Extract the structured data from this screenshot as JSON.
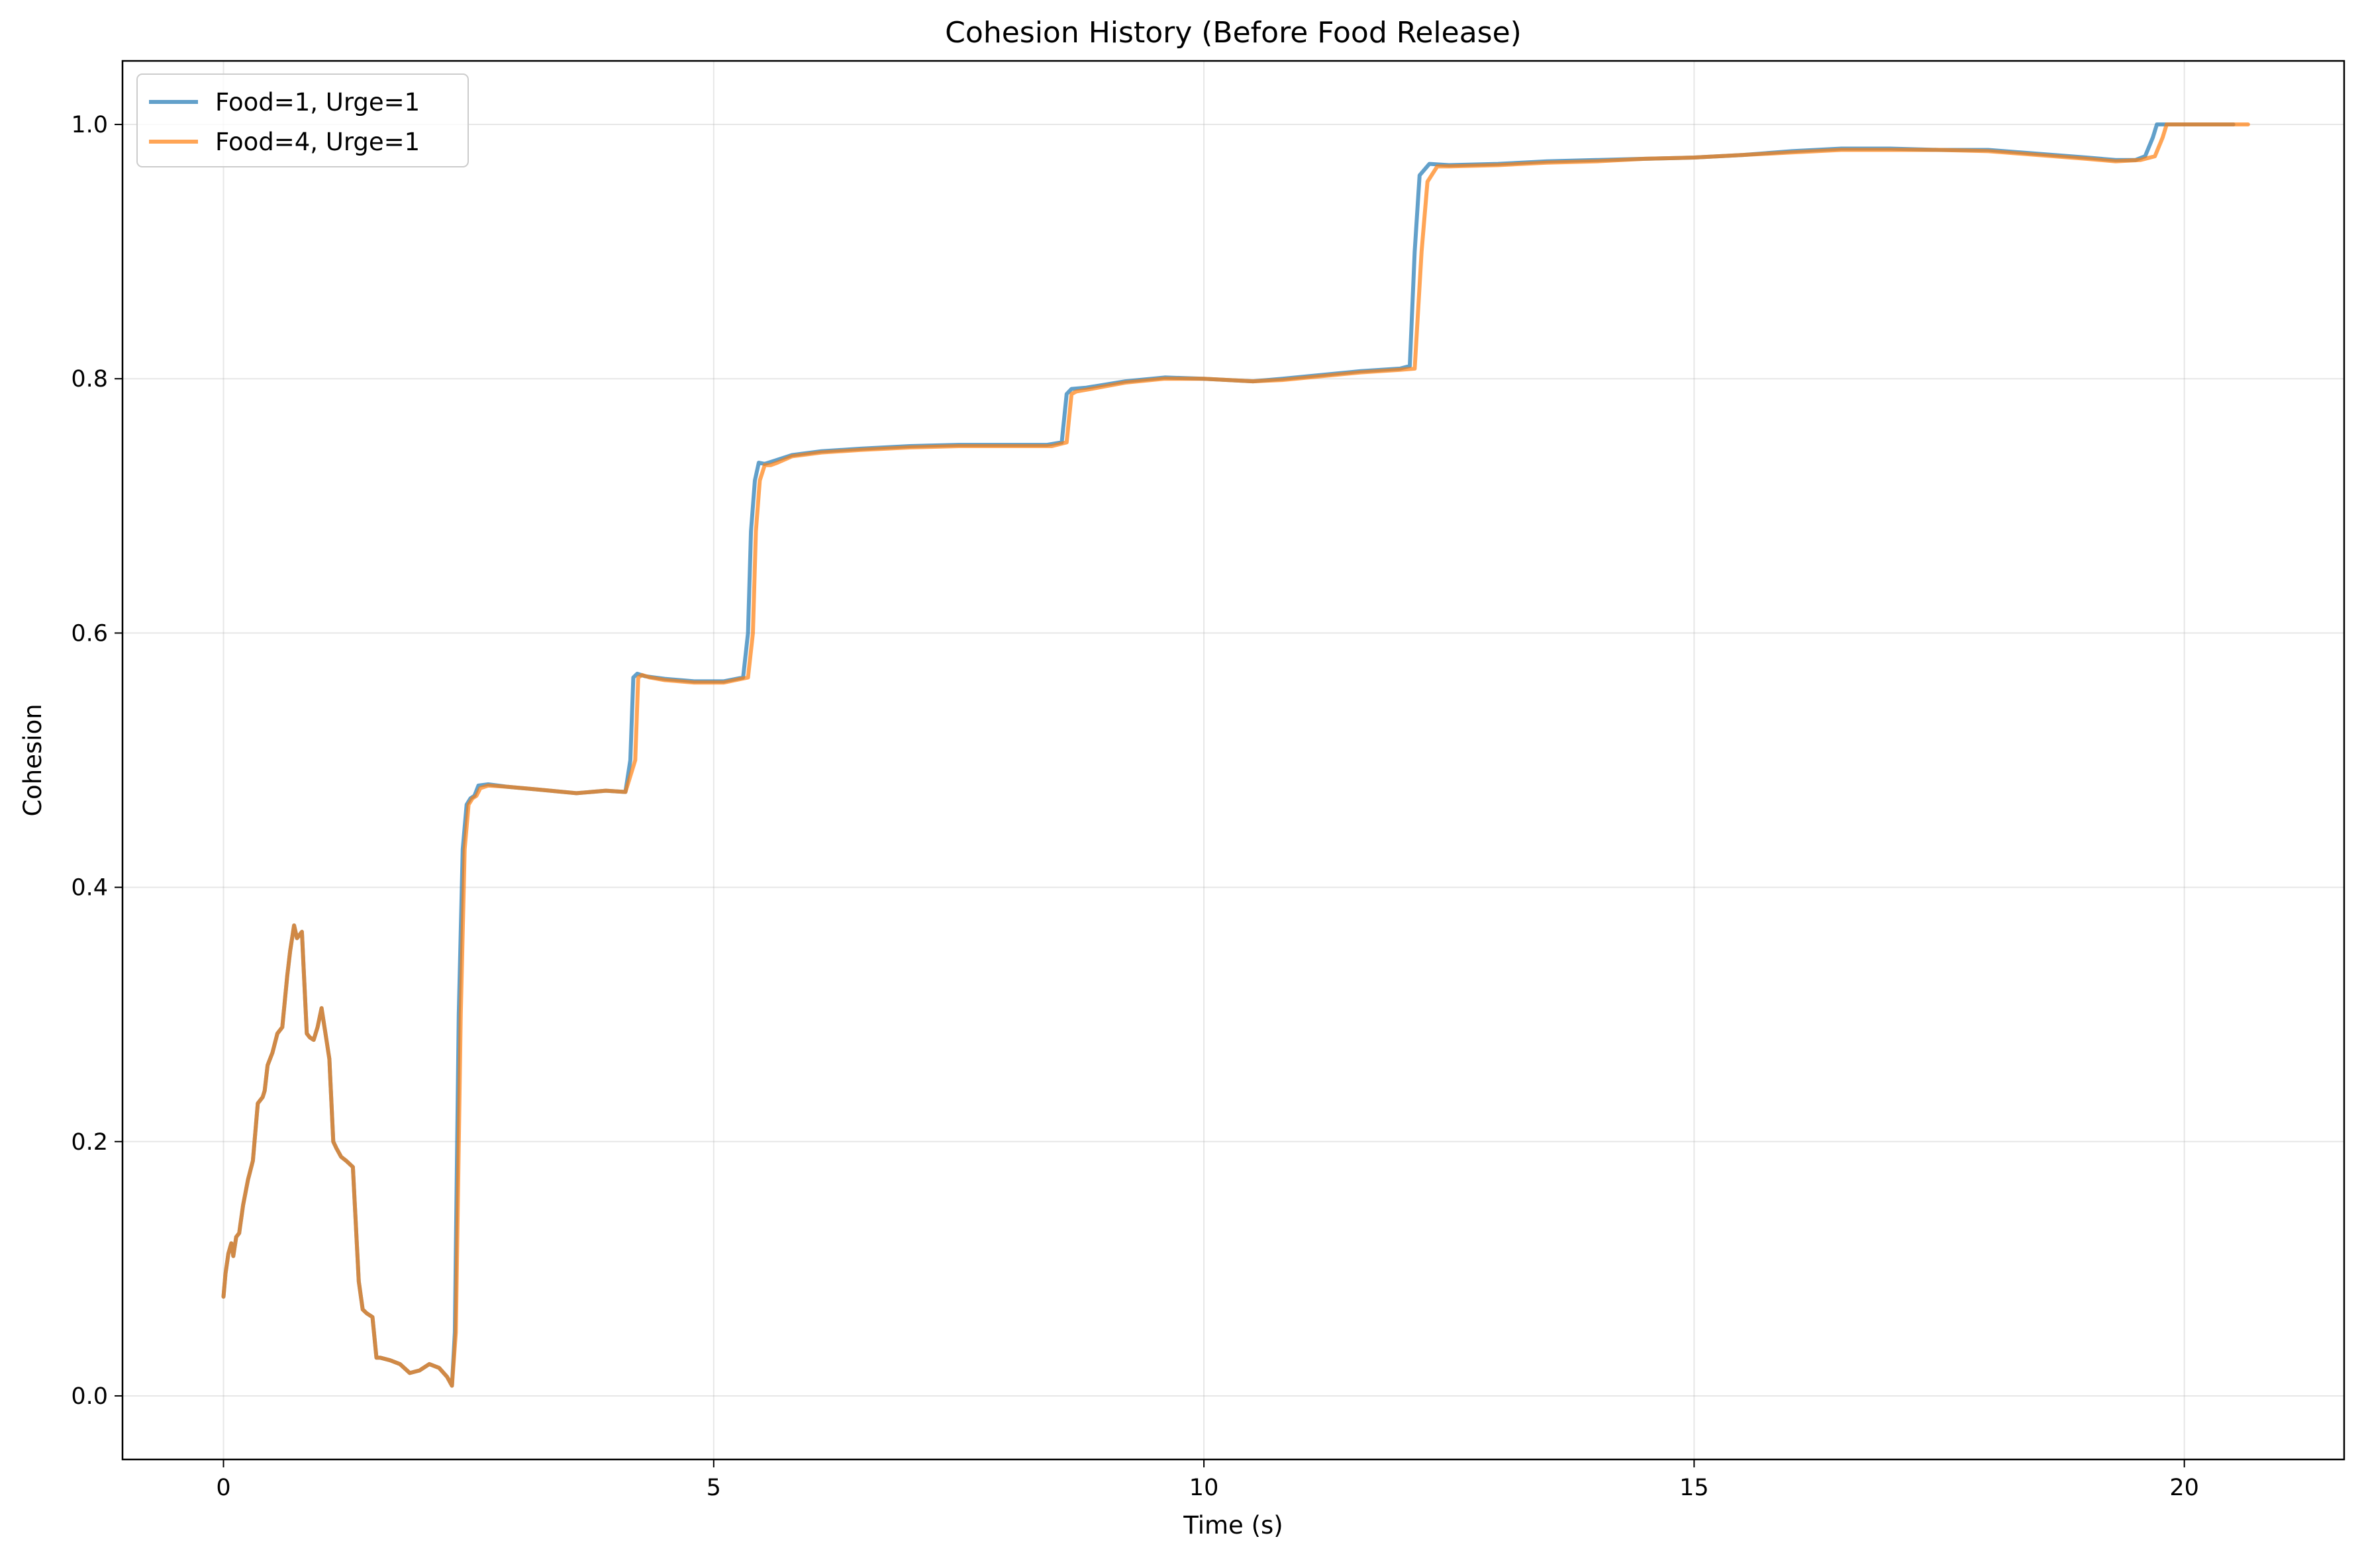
{
  "chart_data": {
    "type": "line",
    "title": "Cohesion History (Before Food Release)",
    "xlabel": "Time (s)",
    "ylabel": "Cohesion",
    "xlim": [
      -1.03,
      21.63
    ],
    "ylim": [
      -0.05,
      1.05
    ],
    "x_ticks": [
      0,
      5,
      10,
      15,
      20
    ],
    "x_tick_labels": [
      "0",
      "5",
      "10",
      "15",
      "20"
    ],
    "y_ticks": [
      0.0,
      0.2,
      0.4,
      0.6,
      0.8,
      1.0
    ],
    "y_tick_labels": [
      "0.0",
      "0.2",
      "0.4",
      "0.6",
      "0.8",
      "1.0"
    ],
    "grid": true,
    "legend_position": "upper-left",
    "series": [
      {
        "name": "Food=1, Urge=1",
        "color": "#1f77b4",
        "x": [
          0,
          0.02,
          0.05,
          0.08,
          0.1,
          0.13,
          0.16,
          0.2,
          0.25,
          0.3,
          0.35,
          0.4,
          0.42,
          0.45,
          0.5,
          0.55,
          0.6,
          0.65,
          0.68,
          0.72,
          0.75,
          0.8,
          0.85,
          0.88,
          0.92,
          0.96,
          1.0,
          1.05,
          1.08,
          1.12,
          1.15,
          1.2,
          1.25,
          1.32,
          1.38,
          1.42,
          1.46,
          1.52,
          1.56,
          1.6,
          1.7,
          1.8,
          1.9,
          2.0,
          2.1,
          2.2,
          2.28,
          2.33,
          2.36,
          2.4,
          2.44,
          2.48,
          2.52,
          2.56,
          2.6,
          2.7,
          2.9,
          3.2,
          3.6,
          3.9,
          4.1,
          4.15,
          4.18,
          4.22,
          4.3,
          4.5,
          4.8,
          5.1,
          5.3,
          5.35,
          5.38,
          5.42,
          5.46,
          5.52,
          5.6,
          5.8,
          6.1,
          6.5,
          7.0,
          7.5,
          8.0,
          8.4,
          8.55,
          8.6,
          8.65,
          8.8,
          9.2,
          9.6,
          10.0,
          10.5,
          10.8,
          11.2,
          11.6,
          12.0,
          12.1,
          12.15,
          12.2,
          12.3,
          12.5,
          13.0,
          13.5,
          14.0,
          14.5,
          15.0,
          15.5,
          16.0,
          16.5,
          17.0,
          17.5,
          18.0,
          18.5,
          19.0,
          19.3,
          19.5,
          19.6,
          19.68,
          19.72,
          19.8,
          20.0,
          20.3,
          20.5
        ],
        "y": [
          0.078,
          0.096,
          0.112,
          0.12,
          0.11,
          0.125,
          0.128,
          0.15,
          0.17,
          0.185,
          0.23,
          0.235,
          0.24,
          0.26,
          0.27,
          0.285,
          0.29,
          0.33,
          0.35,
          0.37,
          0.36,
          0.365,
          0.285,
          0.282,
          0.28,
          0.29,
          0.305,
          0.28,
          0.265,
          0.2,
          0.195,
          0.188,
          0.185,
          0.18,
          0.09,
          0.068,
          0.065,
          0.062,
          0.03,
          0.03,
          0.028,
          0.025,
          0.018,
          0.02,
          0.025,
          0.022,
          0.015,
          0.008,
          0.05,
          0.3,
          0.43,
          0.465,
          0.47,
          0.472,
          0.48,
          0.481,
          0.479,
          0.477,
          0.474,
          0.476,
          0.475,
          0.5,
          0.565,
          0.568,
          0.566,
          0.564,
          0.562,
          0.562,
          0.565,
          0.6,
          0.68,
          0.72,
          0.734,
          0.733,
          0.735,
          0.74,
          0.743,
          0.745,
          0.747,
          0.748,
          0.748,
          0.748,
          0.75,
          0.788,
          0.792,
          0.793,
          0.798,
          0.801,
          0.8,
          0.798,
          0.8,
          0.803,
          0.806,
          0.808,
          0.81,
          0.9,
          0.96,
          0.969,
          0.968,
          0.969,
          0.971,
          0.972,
          0.973,
          0.974,
          0.976,
          0.979,
          0.981,
          0.981,
          0.98,
          0.98,
          0.977,
          0.974,
          0.972,
          0.972,
          0.975,
          0.99,
          1.0,
          1.0,
          1.0,
          1.0,
          1.0
        ]
      },
      {
        "name": "Food=4, Urge=1",
        "color": "#ff7f0e",
        "x": [
          0,
          0.02,
          0.05,
          0.08,
          0.1,
          0.13,
          0.16,
          0.2,
          0.25,
          0.3,
          0.35,
          0.4,
          0.42,
          0.45,
          0.5,
          0.55,
          0.6,
          0.65,
          0.68,
          0.72,
          0.75,
          0.8,
          0.85,
          0.88,
          0.92,
          0.96,
          1.0,
          1.05,
          1.08,
          1.12,
          1.15,
          1.2,
          1.25,
          1.32,
          1.38,
          1.42,
          1.46,
          1.52,
          1.56,
          1.6,
          1.7,
          1.8,
          1.9,
          2.0,
          2.1,
          2.2,
          2.28,
          2.33,
          2.37,
          2.42,
          2.46,
          2.5,
          2.54,
          2.58,
          2.62,
          2.7,
          2.9,
          3.2,
          3.6,
          3.9,
          4.1,
          4.2,
          4.23,
          4.27,
          4.35,
          4.5,
          4.8,
          5.1,
          5.35,
          5.4,
          5.43,
          5.47,
          5.52,
          5.58,
          5.65,
          5.8,
          6.1,
          6.5,
          7.0,
          7.5,
          8.0,
          8.45,
          8.6,
          8.65,
          8.7,
          8.85,
          9.2,
          9.6,
          10.0,
          10.5,
          10.8,
          11.2,
          11.6,
          12.0,
          12.15,
          12.22,
          12.28,
          12.38,
          12.5,
          13.0,
          13.5,
          14.0,
          14.5,
          15.0,
          15.5,
          16.0,
          16.5,
          17.0,
          17.5,
          18.0,
          18.5,
          19.0,
          19.3,
          19.55,
          19.7,
          19.78,
          19.82,
          19.9,
          20.1,
          20.4,
          20.65
        ],
        "y": [
          0.078,
          0.096,
          0.112,
          0.12,
          0.11,
          0.125,
          0.128,
          0.15,
          0.17,
          0.185,
          0.23,
          0.235,
          0.24,
          0.26,
          0.27,
          0.285,
          0.29,
          0.33,
          0.35,
          0.37,
          0.36,
          0.365,
          0.285,
          0.282,
          0.28,
          0.29,
          0.305,
          0.28,
          0.265,
          0.2,
          0.195,
          0.188,
          0.185,
          0.18,
          0.09,
          0.068,
          0.065,
          0.062,
          0.03,
          0.03,
          0.028,
          0.025,
          0.018,
          0.02,
          0.025,
          0.022,
          0.015,
          0.008,
          0.05,
          0.3,
          0.43,
          0.465,
          0.47,
          0.472,
          0.478,
          0.48,
          0.479,
          0.477,
          0.474,
          0.476,
          0.475,
          0.5,
          0.565,
          0.567,
          0.565,
          0.563,
          0.561,
          0.561,
          0.565,
          0.6,
          0.68,
          0.72,
          0.732,
          0.732,
          0.734,
          0.739,
          0.742,
          0.744,
          0.746,
          0.747,
          0.747,
          0.747,
          0.75,
          0.788,
          0.79,
          0.792,
          0.797,
          0.8,
          0.8,
          0.798,
          0.799,
          0.802,
          0.805,
          0.807,
          0.808,
          0.9,
          0.955,
          0.967,
          0.967,
          0.968,
          0.97,
          0.971,
          0.973,
          0.974,
          0.976,
          0.978,
          0.98,
          0.98,
          0.98,
          0.979,
          0.976,
          0.973,
          0.971,
          0.972,
          0.975,
          0.99,
          1.0,
          1.0,
          1.0,
          1.0,
          1.0
        ]
      }
    ]
  }
}
